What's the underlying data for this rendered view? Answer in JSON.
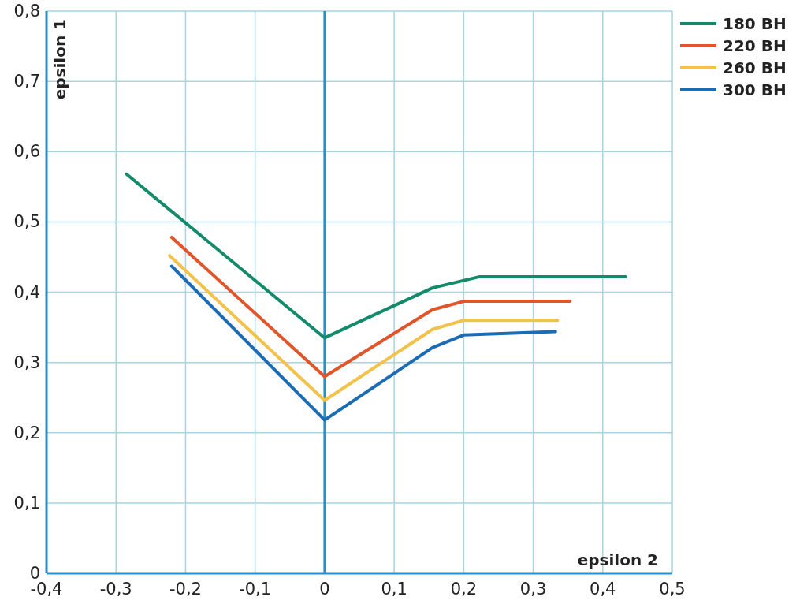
{
  "chart_data": {
    "type": "line",
    "xlabel": "epsilon 2",
    "ylabel": "epsilon 1",
    "xlim": [
      -0.4,
      0.5
    ],
    "ylim": [
      0,
      0.8
    ],
    "xticks": [
      {
        "value": -0.4,
        "label": "-0,4"
      },
      {
        "value": -0.3,
        "label": "-0,3"
      },
      {
        "value": -0.2,
        "label": "-0,2"
      },
      {
        "value": -0.1,
        "label": "-0,1"
      },
      0,
      {
        "value": 0.1,
        "label": "0,1"
      },
      {
        "value": 0.2,
        "label": "0,2"
      },
      {
        "value": 0.3,
        "label": "0,3"
      },
      {
        "value": 0.4,
        "label": "0,4"
      },
      {
        "value": 0.5,
        "label": "0,5"
      }
    ],
    "yticks": [
      0,
      {
        "value": 0.1,
        "label": "0,1"
      },
      {
        "value": 0.2,
        "label": "0,2"
      },
      {
        "value": 0.3,
        "label": "0,3"
      },
      {
        "value": 0.4,
        "label": "0,4"
      },
      {
        "value": 0.5,
        "label": "0,5"
      },
      {
        "value": 0.6,
        "label": "0,6"
      },
      {
        "value": 0.7,
        "label": "0,7"
      },
      {
        "value": 0.8,
        "label": "0,8"
      }
    ],
    "grid": true,
    "legend": "top right",
    "marker": "none",
    "line_style": "solid",
    "ref_lines": [
      {
        "axis": "x",
        "value": 0,
        "color": "#2a8fc9"
      }
    ],
    "series": [
      {
        "name": "180 BH",
        "color": "#138a6a",
        "x": [
          -0.285,
          0,
          0.155,
          0.223,
          0.433
        ],
        "values": [
          0.568,
          0.335,
          0.406,
          0.422,
          0.422
        ]
      },
      {
        "name": "220 BH",
        "color": "#e0562a",
        "x": [
          -0.22,
          0,
          0.155,
          0.2,
          0.353
        ],
        "values": [
          0.478,
          0.28,
          0.375,
          0.387,
          0.387
        ]
      },
      {
        "name": "260 BH",
        "color": "#f2c24a",
        "x": [
          -0.223,
          0,
          0.155,
          0.2,
          0.335
        ],
        "values": [
          0.452,
          0.246,
          0.347,
          0.36,
          0.36
        ]
      },
      {
        "name": "300 BH",
        "color": "#1b6cb5",
        "x": [
          -0.22,
          0,
          0.155,
          0.2,
          0.332
        ],
        "values": [
          0.437,
          0.218,
          0.321,
          0.339,
          0.344
        ]
      }
    ]
  }
}
